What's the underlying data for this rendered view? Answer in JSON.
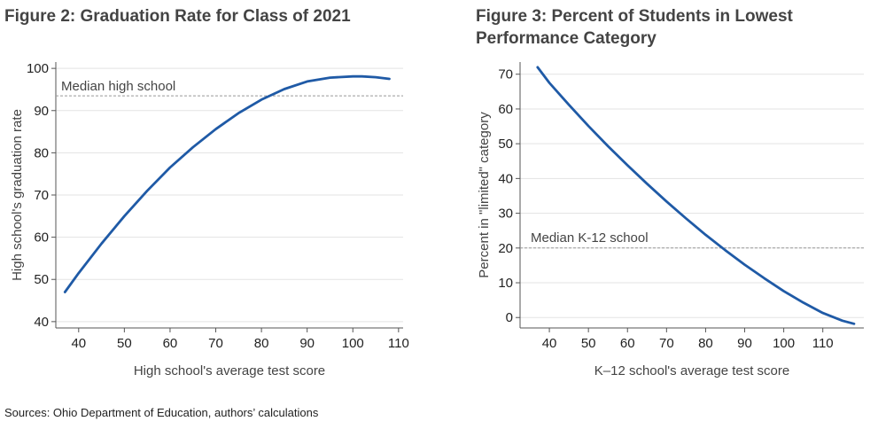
{
  "chart_data": [
    {
      "type": "line",
      "title": "Figure 2: Graduation Rate for Class of 2021",
      "xlabel": "High school's average test score",
      "ylabel": "High school's graduation rate",
      "xlim": [
        35,
        111
      ],
      "ylim": [
        38.5,
        101.5
      ],
      "xticks": [
        40,
        50,
        60,
        70,
        80,
        90,
        100,
        110
      ],
      "yticks": [
        40,
        50,
        60,
        70,
        80,
        90,
        100
      ],
      "grid": true,
      "color": "#1f5aa6",
      "series": [
        {
          "name": "Graduation rate",
          "x": [
            37,
            40,
            45,
            50,
            55,
            60,
            65,
            70,
            75,
            80,
            85,
            90,
            95,
            100,
            102,
            105,
            108
          ],
          "y": [
            47,
            51.5,
            58.5,
            65,
            71,
            76.5,
            81.3,
            85.6,
            89.4,
            92.6,
            95.1,
            96.9,
            97.8,
            98.1,
            98.1,
            97.9,
            97.5
          ]
        }
      ],
      "reference_line": {
        "value": 93.5,
        "label": "Median high school"
      }
    },
    {
      "type": "line",
      "title": "Figure 3: Percent of Students in Lowest Performance Category",
      "xlabel": "K–12 school's average test score",
      "ylabel": "Percent in \"limited\" category",
      "xlim": [
        32.5,
        120.5
      ],
      "ylim": [
        -3,
        73.5
      ],
      "xticks": [
        40,
        50,
        60,
        70,
        80,
        90,
        100,
        110
      ],
      "yticks": [
        0,
        10,
        20,
        30,
        40,
        50,
        60,
        70
      ],
      "grid": true,
      "color": "#1f5aa6",
      "series": [
        {
          "name": "Percent limited",
          "x": [
            37,
            40,
            45,
            50,
            55,
            60,
            65,
            70,
            75,
            80,
            85,
            90,
            95,
            100,
            105,
            110,
            115,
            118
          ],
          "y": [
            72,
            67.5,
            61.2,
            55.1,
            49.3,
            43.8,
            38.5,
            33.4,
            28.5,
            23.8,
            19.4,
            15.2,
            11.3,
            7.6,
            4.3,
            1.3,
            -0.9,
            -1.8
          ]
        }
      ],
      "reference_line": {
        "value": 20,
        "label": "Median K-12 school"
      }
    }
  ],
  "footer": {
    "source": "Sources: Ohio Department of Education, authors’ calculations"
  }
}
